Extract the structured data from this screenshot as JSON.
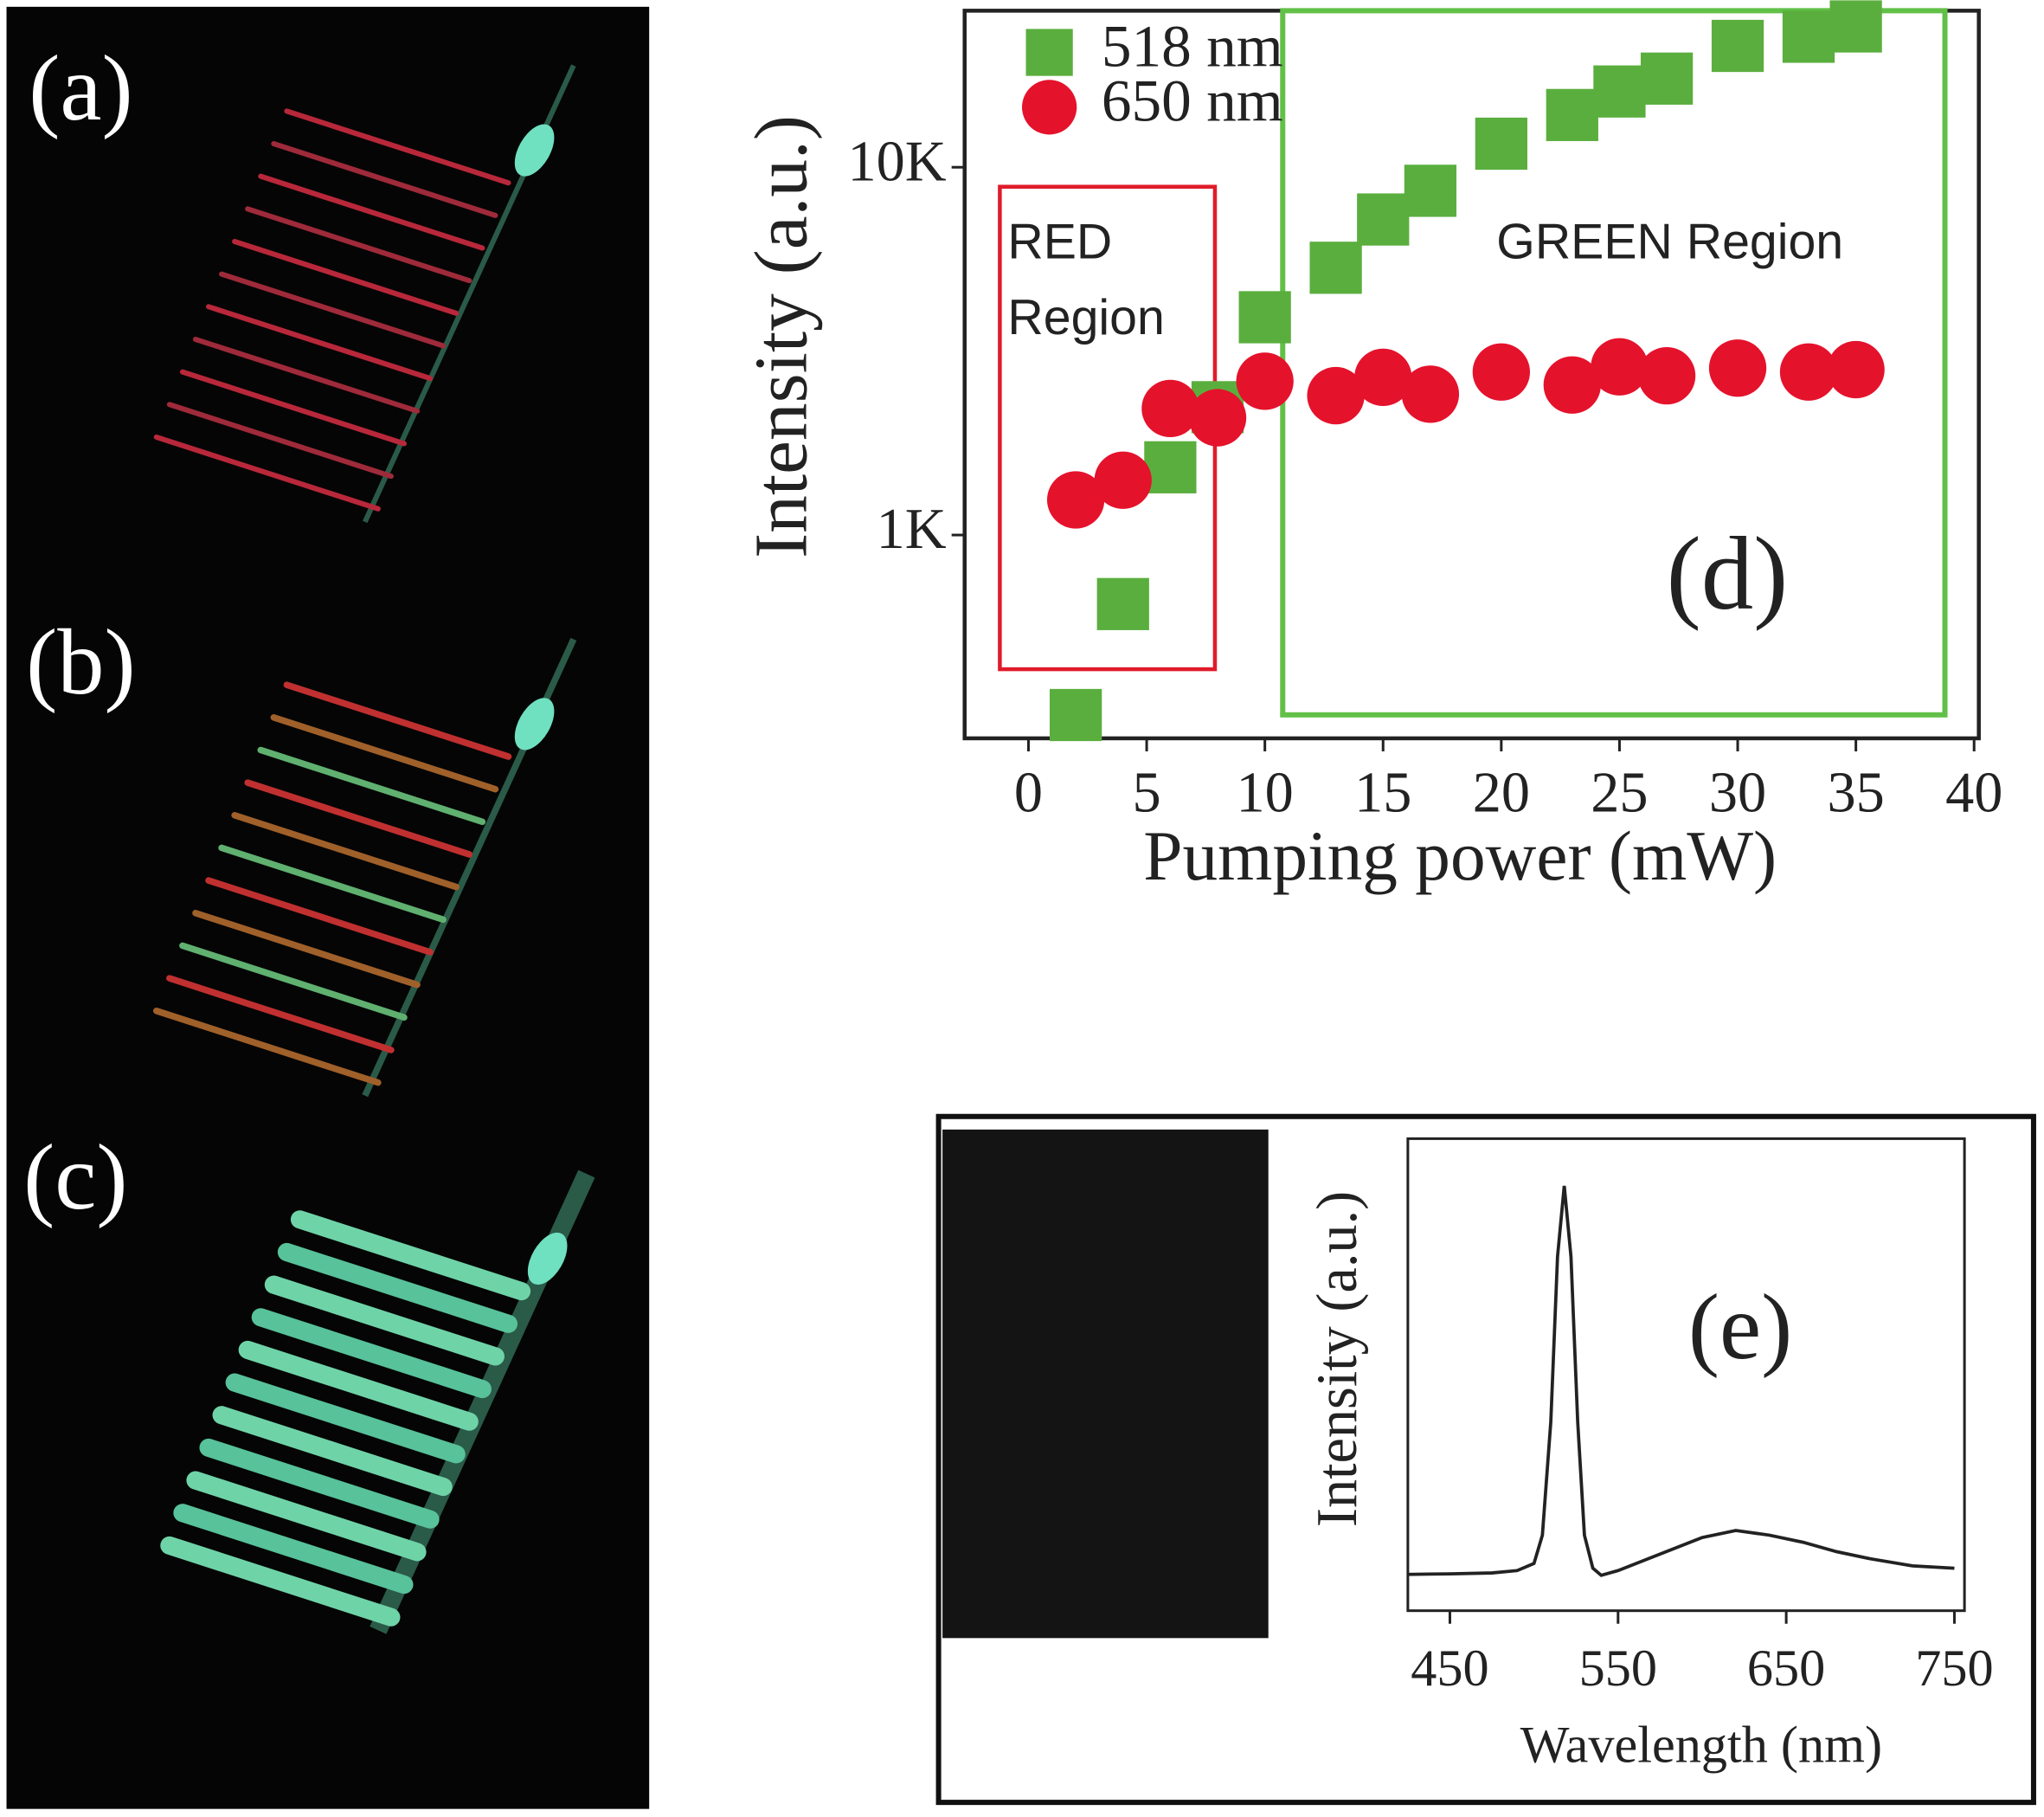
{
  "images": {
    "labels": [
      "(a)",
      "(b)",
      "(c)"
    ]
  },
  "chart_data": [
    {
      "type": "scatter",
      "xlabel": "Pumping power (mW)",
      "ylabel": "Intensity (a.u.)",
      "x": [
        2,
        4,
        6,
        8,
        10,
        13,
        15,
        17,
        20,
        23,
        25,
        27,
        30,
        33,
        35
      ],
      "series": [
        {
          "name": "518 nm",
          "color": "#5aae3e",
          "marker": "square",
          "values": [
            324,
            649,
            1528,
            2226,
            3910,
            5330,
            7210,
            8630,
            11590,
            13870,
            16070,
            17420,
            21380,
            22640,
            24150
          ]
        },
        {
          "name": "650 nm",
          "color": "#e5122c",
          "marker": "circle",
          "values": [
            1246,
            1409,
            2208,
            2084,
            2619,
            2393,
            2684,
            2415,
            2775,
            2558,
            2866,
            2710,
            2844,
            2775,
            2816
          ]
        }
      ],
      "xlim": [
        -2.7,
        40.2
      ],
      "xticks": [
        0,
        5,
        10,
        15,
        20,
        25,
        30,
        35,
        40
      ],
      "ylim": [
        280,
        26650
      ],
      "yticks": [
        {
          "value": 1000,
          "label": "1K"
        },
        {
          "value": 10000,
          "label": "10K"
        }
      ],
      "log_y": true,
      "grid": false,
      "legend": "upper left",
      "annotations": {
        "red_region": [
          "RED",
          "Region"
        ],
        "green_region": "GREEN Region",
        "panel": "(d)"
      }
    },
    {
      "type": "line",
      "xlabel": "Wavelength (nm)",
      "ylabel": "Intensity (a.u.)",
      "color": "#222222",
      "x": [
        425,
        450,
        475,
        490,
        500,
        505,
        510,
        514,
        518,
        522,
        526,
        530,
        535,
        540,
        550,
        575,
        600,
        620,
        640,
        660,
        680,
        700,
        725,
        750
      ],
      "values": [
        0.077,
        0.078,
        0.08,
        0.085,
        0.1,
        0.16,
        0.4,
        0.75,
        0.9,
        0.75,
        0.4,
        0.16,
        0.09,
        0.075,
        0.085,
        0.12,
        0.155,
        0.17,
        0.16,
        0.145,
        0.125,
        0.11,
        0.095,
        0.09
      ],
      "xlim": [
        425,
        756
      ],
      "xticks": [
        450,
        550,
        650,
        750
      ],
      "ylim": [
        0,
        1
      ],
      "grid": false,
      "annotations": {
        "panel": "(e)"
      }
    }
  ]
}
